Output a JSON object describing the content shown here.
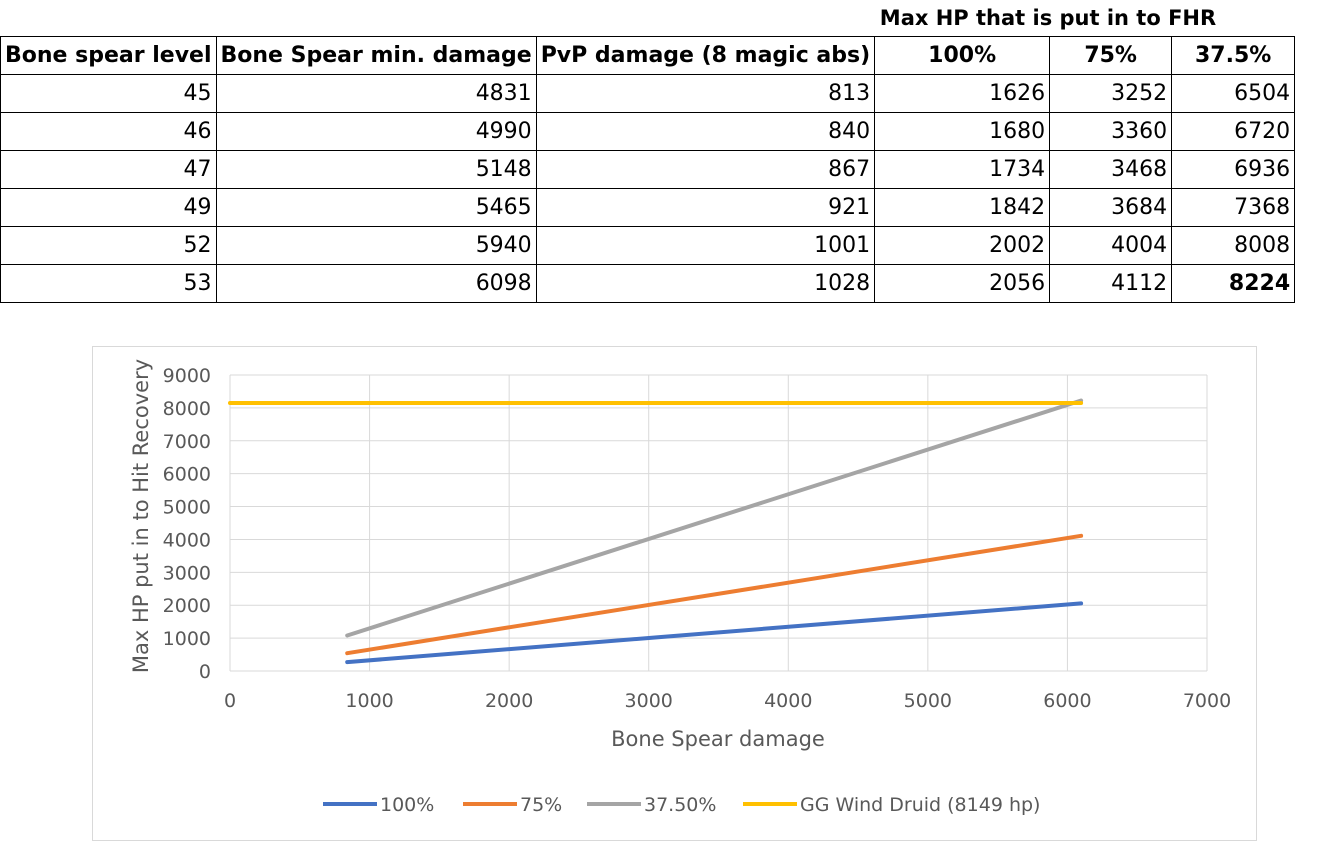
{
  "table": {
    "group_header": "Max HP that is put in to FHR",
    "columns": [
      "Bone spear level",
      "Bone Spear min. damage",
      "PvP damage (8 magic abs)",
      "100%",
      "75%",
      "37.5%"
    ],
    "rows": [
      [
        "45",
        "4831",
        "813",
        "1626",
        "3252",
        "6504"
      ],
      [
        "46",
        "4990",
        "840",
        "1680",
        "3360",
        "6720"
      ],
      [
        "47",
        "5148",
        "867",
        "1734",
        "3468",
        "6936"
      ],
      [
        "49",
        "5465",
        "921",
        "1842",
        "3684",
        "7368"
      ],
      [
        "52",
        "5940",
        "1001",
        "2002",
        "4004",
        "8008"
      ],
      [
        "53",
        "6098",
        "1028",
        "2056",
        "4112",
        "8224"
      ]
    ]
  },
  "chart_data": {
    "type": "line",
    "title": "",
    "xlabel": "Bone Spear damage",
    "ylabel": "Max HP put in to Hit Recovery",
    "xlim": [
      0,
      7000
    ],
    "ylim": [
      0,
      9000
    ],
    "x_ticks": [
      0,
      1000,
      2000,
      3000,
      4000,
      5000,
      6000,
      7000
    ],
    "y_ticks": [
      0,
      1000,
      2000,
      3000,
      4000,
      5000,
      6000,
      7000,
      8000,
      9000
    ],
    "grid": true,
    "legend_position": "bottom",
    "series": [
      {
        "name": "100%",
        "color": "#4472c4",
        "points": [
          [
            840,
            270
          ],
          [
            6098,
            2056
          ]
        ]
      },
      {
        "name": "75%",
        "color": "#ed7d31",
        "points": [
          [
            840,
            540
          ],
          [
            6098,
            4112
          ]
        ]
      },
      {
        "name": "37.50%",
        "color": "#a5a5a5",
        "points": [
          [
            840,
            1080
          ],
          [
            6098,
            8224
          ]
        ]
      },
      {
        "name": "GG Wind Druid (8149 hp)",
        "color": "#ffc000",
        "points": [
          [
            0,
            8149
          ],
          [
            6098,
            8149
          ]
        ]
      }
    ]
  }
}
